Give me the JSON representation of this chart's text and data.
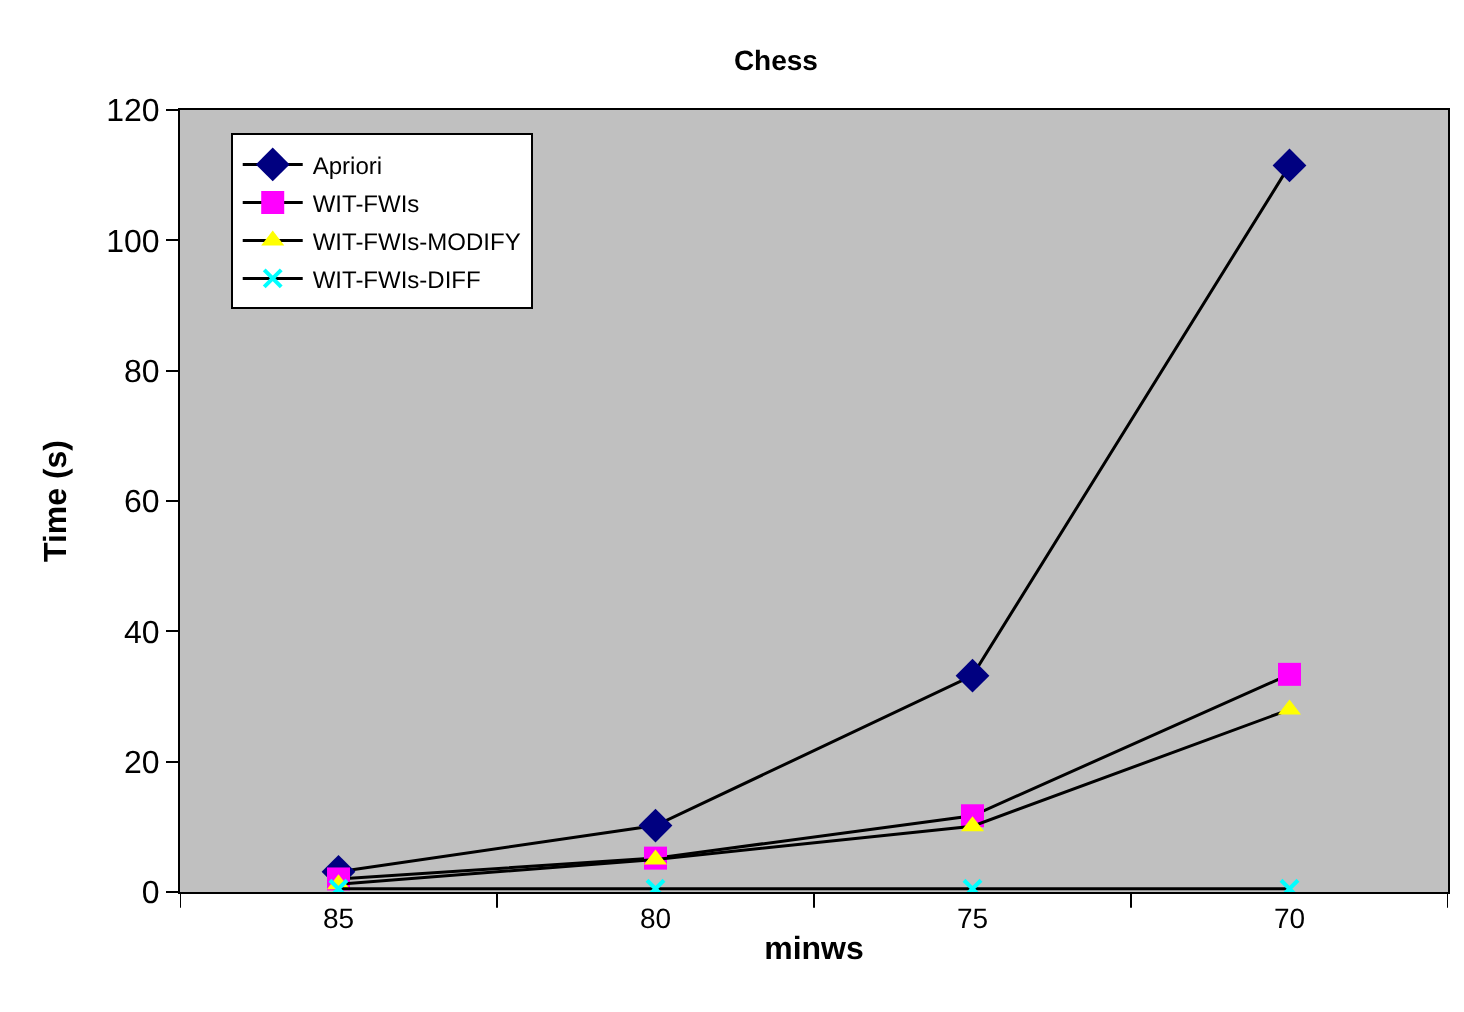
{
  "chart_data": {
    "type": "line",
    "title": "Chess",
    "xlabel": "minws",
    "ylabel": "Time (s)",
    "categories": [
      "85",
      "80",
      "75",
      "70"
    ],
    "series": [
      {
        "name": "Apriori",
        "color": "#000080",
        "marker": "diamond",
        "values": [
          3.1,
          10.2,
          33.2,
          111.5
        ]
      },
      {
        "name": "WIT-FWIs",
        "color": "#ff00ff",
        "marker": "square",
        "values": [
          2,
          5.2,
          11.7,
          33.4
        ]
      },
      {
        "name": "WIT-FWIs-MODIFY",
        "color": "#ffff00",
        "marker": "triangle",
        "values": [
          1.2,
          5,
          10.1,
          28
        ]
      },
      {
        "name": "WIT-FWIs-DIFF",
        "color": "#00ffff",
        "marker": "cross",
        "values": [
          0.5,
          0.5,
          0.5,
          0.5
        ]
      }
    ],
    "ylim": [
      0,
      120
    ],
    "yticks": [
      0,
      20,
      40,
      60,
      80,
      100,
      120
    ],
    "grid": false,
    "legend": "top left",
    "line_style": "solid"
  }
}
